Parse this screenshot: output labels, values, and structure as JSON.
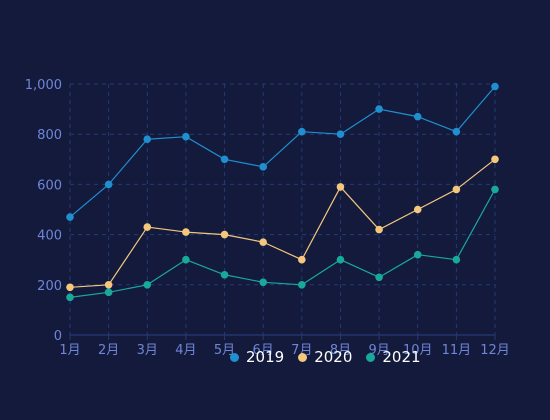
{
  "chart_data": {
    "type": "line",
    "categories": [
      "1月",
      "2月",
      "3月",
      "4月",
      "5月",
      "6月",
      "7月",
      "8月",
      "9月",
      "10月",
      "11月",
      "12月"
    ],
    "ylim": [
      0,
      1000
    ],
    "yticks": [
      "0",
      "200",
      "400",
      "600",
      "800",
      "1,000"
    ],
    "yticks_values": [
      0,
      200,
      400,
      600,
      800,
      1000
    ],
    "grid": true,
    "legend_position": "bottom",
    "series": [
      {
        "name": "2019",
        "color": "#1f8fd0",
        "values": [
          470,
          600,
          780,
          790,
          700,
          670,
          810,
          800,
          900,
          870,
          810,
          990
        ]
      },
      {
        "name": "2020",
        "color": "#f4c77d",
        "values": [
          190,
          200,
          430,
          410,
          400,
          370,
          300,
          590,
          420,
          500,
          580,
          700
        ]
      },
      {
        "name": "2021",
        "color": "#18a99b",
        "values": [
          150,
          170,
          200,
          300,
          240,
          210,
          200,
          300,
          230,
          320,
          300,
          580
        ]
      }
    ]
  },
  "theme": {
    "background": "#131a3c",
    "grid_color": "#243a75",
    "axis_label_color": "#6f86d8",
    "legend_text_color": "#ffffff"
  }
}
